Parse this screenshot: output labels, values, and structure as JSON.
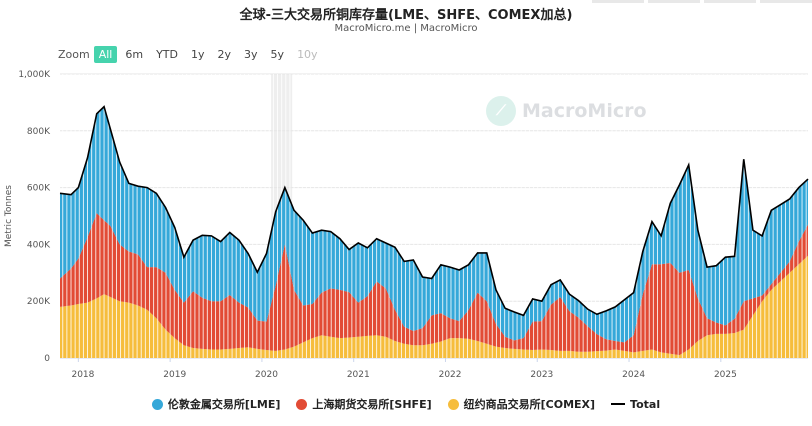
{
  "header": {
    "title": "全球-三大交易所铜库存量(LME、SHFE、COMEX加总)",
    "subtitle": "MacroMicro.me | MacroMicro"
  },
  "range_selector": {
    "label": "Zoom",
    "buttons": [
      "All",
      "6m",
      "YTD",
      "1y",
      "2y",
      "3y",
      "5y",
      "10y"
    ],
    "active": "All",
    "disabled": [
      "10y"
    ]
  },
  "watermark": "MacroMicro",
  "colors": {
    "lme": "#35a8d9",
    "shfe": "#e24b35",
    "comex": "#f6bd3c",
    "total": "#000000",
    "highlight": "#eeeeee",
    "active_button": "#46d3ad"
  },
  "legend": [
    {
      "key": "lme",
      "label": "伦敦金属交易所[LME]",
      "color": "#35a8d9"
    },
    {
      "key": "shfe",
      "label": "上海期货交易所[SHFE]",
      "color": "#e24b35"
    },
    {
      "key": "comex",
      "label": "纽约商品交易所[COMEX]",
      "color": "#f6bd3c"
    },
    {
      "key": "total",
      "label": "Total",
      "color": "#000000"
    }
  ],
  "chart_data": {
    "type": "area",
    "stacked": true,
    "ylabel": "Metric Tonnes",
    "ylim": [
      0,
      1000
    ],
    "yunit": "K",
    "yticks": [
      "0",
      "200K",
      "400K",
      "600K",
      "800K",
      "1,000K"
    ],
    "xticks": [
      "2018",
      "2019",
      "2020",
      "2021",
      "2022",
      "2023",
      "2024",
      "2025"
    ],
    "xlim": [
      2017.8,
      2025.95
    ],
    "highlight_band": [
      2020.1,
      2020.33
    ],
    "x": [
      2017.8,
      2017.92,
      2018.0,
      2018.1,
      2018.2,
      2018.28,
      2018.35,
      2018.45,
      2018.55,
      2018.65,
      2018.75,
      2018.85,
      2018.95,
      2019.05,
      2019.15,
      2019.25,
      2019.35,
      2019.45,
      2019.55,
      2019.65,
      2019.75,
      2019.85,
      2019.95,
      2020.05,
      2020.15,
      2020.25,
      2020.35,
      2020.45,
      2020.55,
      2020.65,
      2020.75,
      2020.85,
      2020.95,
      2021.05,
      2021.15,
      2021.25,
      2021.35,
      2021.45,
      2021.55,
      2021.65,
      2021.75,
      2021.85,
      2021.95,
      2022.05,
      2022.15,
      2022.25,
      2022.35,
      2022.45,
      2022.55,
      2022.65,
      2022.75,
      2022.85,
      2022.95,
      2023.05,
      2023.15,
      2023.25,
      2023.35,
      2023.45,
      2023.55,
      2023.65,
      2023.75,
      2023.85,
      2023.95,
      2024.05,
      2024.15,
      2024.25,
      2024.35,
      2024.45,
      2024.55,
      2024.65,
      2024.75,
      2024.85,
      2024.95,
      2025.05,
      2025.15,
      2025.25,
      2025.35,
      2025.45,
      2025.55,
      2025.65,
      2025.75,
      2025.85,
      2025.95
    ],
    "series": [
      {
        "name": "纽约商品交易所[COMEX]",
        "key": "comex",
        "values": [
          180,
          185,
          190,
          195,
          210,
          225,
          215,
          200,
          195,
          185,
          170,
          140,
          100,
          70,
          45,
          35,
          32,
          30,
          30,
          32,
          35,
          38,
          32,
          28,
          25,
          30,
          40,
          55,
          70,
          80,
          75,
          70,
          72,
          75,
          78,
          80,
          75,
          60,
          50,
          45,
          45,
          50,
          58,
          70,
          70,
          68,
          60,
          50,
          40,
          35,
          32,
          30,
          28,
          30,
          28,
          25,
          25,
          22,
          22,
          24,
          26,
          30,
          25,
          20,
          25,
          30,
          20,
          15,
          10,
          30,
          60,
          80,
          85,
          85,
          88,
          100,
          150,
          200,
          240,
          270,
          300,
          330,
          360
        ]
      },
      {
        "name": "上海期货交易所[SHFE]",
        "key": "shfe",
        "values": [
          100,
          130,
          160,
          230,
          300,
          260,
          250,
          200,
          180,
          180,
          150,
          180,
          200,
          170,
          150,
          200,
          180,
          170,
          170,
          190,
          160,
          140,
          100,
          100,
          230,
          370,
          200,
          130,
          120,
          150,
          170,
          170,
          160,
          120,
          140,
          190,
          170,
          110,
          60,
          50,
          60,
          100,
          100,
          70,
          60,
          100,
          170,
          150,
          80,
          40,
          30,
          40,
          100,
          100,
          160,
          190,
          140,
          120,
          90,
          60,
          40,
          30,
          30,
          60,
          200,
          300,
          310,
          320,
          290,
          280,
          150,
          60,
          40,
          30,
          50,
          100,
          60,
          20,
          20,
          30,
          40,
          80,
          110
        ]
      },
      {
        "name": "伦敦金属交易所[LME]",
        "key": "lme",
        "values": [
          300,
          260,
          250,
          280,
          350,
          400,
          340,
          290,
          240,
          240,
          280,
          260,
          230,
          220,
          160,
          180,
          220,
          230,
          210,
          220,
          220,
          190,
          170,
          240,
          260,
          200,
          280,
          300,
          250,
          220,
          200,
          180,
          150,
          210,
          170,
          150,
          160,
          220,
          230,
          250,
          180,
          130,
          170,
          180,
          180,
          160,
          140,
          170,
          120,
          100,
          100,
          80,
          80,
          70,
          70,
          60,
          60,
          60,
          60,
          70,
          100,
          120,
          150,
          150,
          150,
          150,
          100,
          210,
          310,
          370,
          240,
          180,
          200,
          240,
          220,
          500,
          240,
          210,
          260,
          240,
          220,
          190,
          160
        ]
      }
    ]
  }
}
